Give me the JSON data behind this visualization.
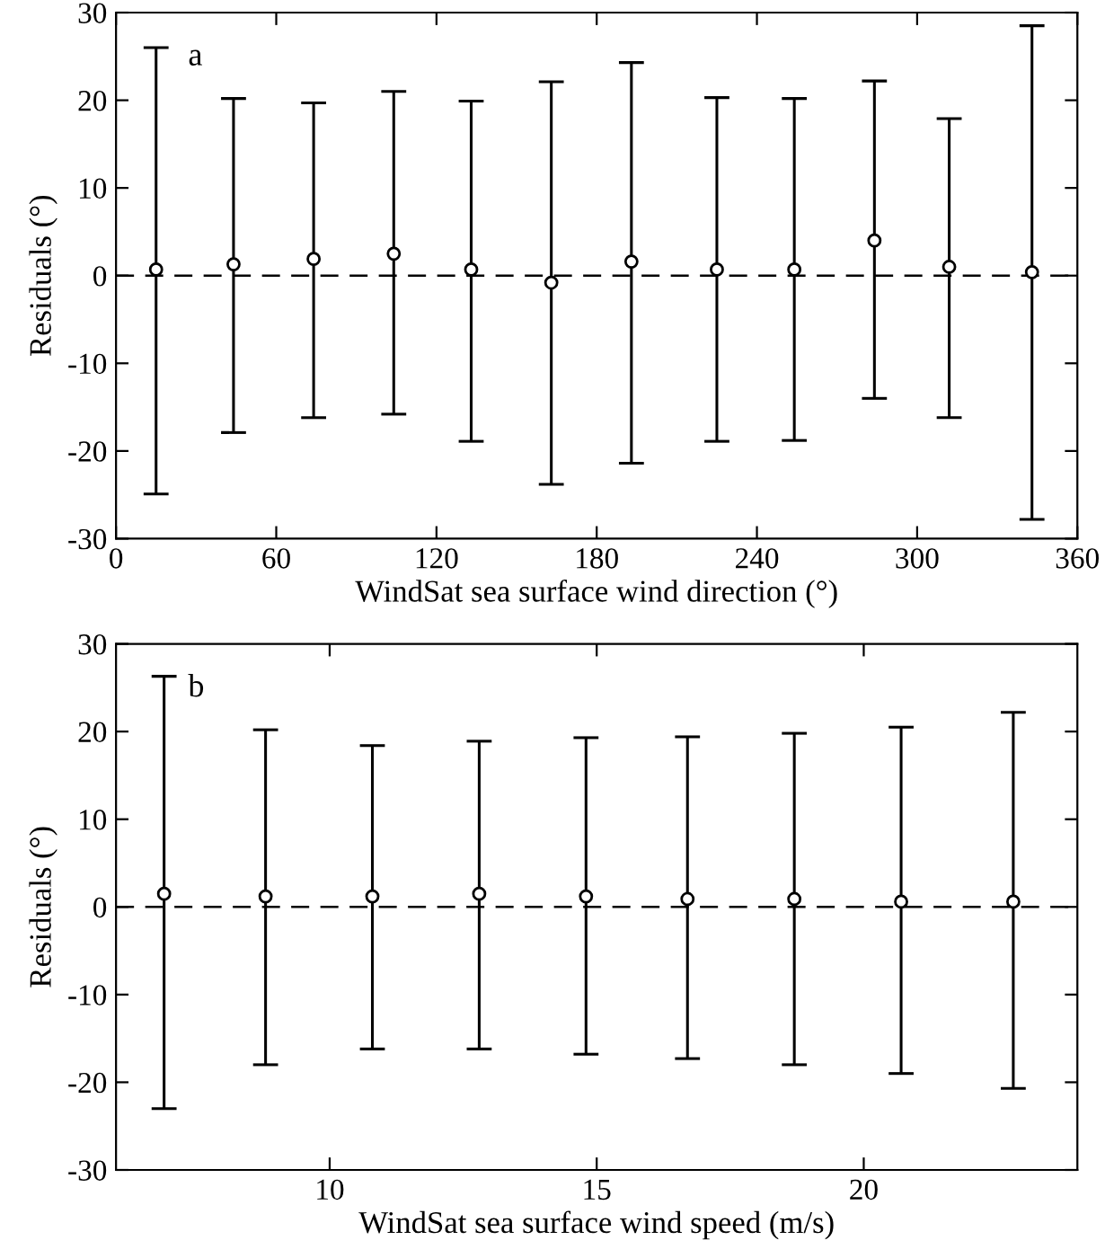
{
  "chart_data": [
    {
      "type": "scatter",
      "xlabel": "WindSat sea surface wind direction (°)",
      "ylabel": "Residuals (°)",
      "annotations": [
        "a"
      ],
      "x": [
        15,
        44,
        74,
        104,
        133,
        163,
        193,
        225,
        254,
        284,
        312,
        343
      ],
      "values": [
        0.7,
        1.3,
        1.9,
        2.5,
        0.7,
        -0.8,
        1.6,
        0.7,
        0.7,
        4.0,
        1.0,
        0.4
      ],
      "errors": [
        [
          -24.9,
          26.0
        ],
        [
          -17.9,
          20.2
        ],
        [
          -16.2,
          19.7
        ],
        [
          -15.8,
          21.0
        ],
        [
          -18.9,
          19.9
        ],
        [
          -23.8,
          22.1
        ],
        [
          -21.4,
          24.3
        ],
        [
          -18.9,
          20.3
        ],
        [
          -18.8,
          20.2
        ],
        [
          -14.0,
          22.2
        ],
        [
          -16.2,
          17.9
        ],
        [
          -27.8,
          28.5
        ]
      ],
      "color": "#000000",
      "marker": "circle",
      "xlim": [
        0,
        360
      ],
      "xticks": [
        0,
        60,
        120,
        180,
        240,
        300,
        360
      ],
      "ylim": [
        -30,
        30
      ],
      "yticks": [
        -30,
        -20,
        -10,
        0,
        10,
        20,
        30
      ],
      "ref_lines": [
        {
          "axis": "y",
          "value": 0,
          "line_style": "dashed",
          "color": "#000000"
        }
      ],
      "grid": false,
      "legend": false
    },
    {
      "type": "scatter",
      "xlabel": "WindSat sea surface wind speed (m/s)",
      "ylabel": "Residuals (°)",
      "annotations": [
        "b"
      ],
      "x": [
        6.9,
        8.8,
        10.8,
        12.8,
        14.8,
        16.7,
        18.7,
        20.7,
        22.8
      ],
      "values": [
        1.5,
        1.2,
        1.2,
        1.5,
        1.2,
        0.9,
        0.9,
        0.6,
        0.6
      ],
      "errors": [
        [
          -23.0,
          26.3
        ],
        [
          -18.0,
          20.2
        ],
        [
          -16.2,
          18.4
        ],
        [
          -16.2,
          18.9
        ],
        [
          -16.8,
          19.3
        ],
        [
          -17.3,
          19.4
        ],
        [
          -18.0,
          19.8
        ],
        [
          -19.0,
          20.5
        ],
        [
          -20.7,
          22.2
        ]
      ],
      "color": "#000000",
      "marker": "circle",
      "xlim": [
        6,
        24
      ],
      "xticks": [
        10,
        15,
        20
      ],
      "ylim": [
        -30,
        30
      ],
      "yticks": [
        -30,
        -20,
        -10,
        0,
        10,
        20,
        30
      ],
      "ref_lines": [
        {
          "axis": "y",
          "value": 0,
          "line_style": "dashed",
          "color": "#000000"
        }
      ],
      "grid": false,
      "legend": false
    }
  ]
}
